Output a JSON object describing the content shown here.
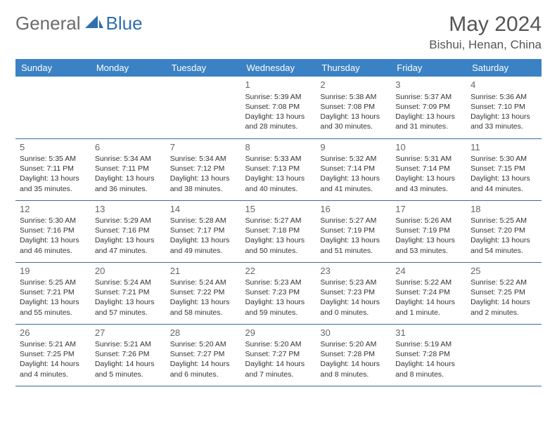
{
  "brand": {
    "part1": "General",
    "part2": "Blue"
  },
  "title": "May 2024",
  "location": "Bishui, Henan, China",
  "colors": {
    "header_bg": "#3b82c4",
    "header_fg": "#ffffff",
    "row_border": "#3b6a9a",
    "text": "#333333",
    "muted": "#666666",
    "brand_gray": "#6b6b6b",
    "brand_blue": "#2f6fb0"
  },
  "weekdays": [
    "Sunday",
    "Monday",
    "Tuesday",
    "Wednesday",
    "Thursday",
    "Friday",
    "Saturday"
  ],
  "weeks": [
    [
      null,
      null,
      null,
      {
        "d": "1",
        "sr": "5:39 AM",
        "ss": "7:08 PM",
        "dl": "13 hours and 28 minutes."
      },
      {
        "d": "2",
        "sr": "5:38 AM",
        "ss": "7:08 PM",
        "dl": "13 hours and 30 minutes."
      },
      {
        "d": "3",
        "sr": "5:37 AM",
        "ss": "7:09 PM",
        "dl": "13 hours and 31 minutes."
      },
      {
        "d": "4",
        "sr": "5:36 AM",
        "ss": "7:10 PM",
        "dl": "13 hours and 33 minutes."
      }
    ],
    [
      {
        "d": "5",
        "sr": "5:35 AM",
        "ss": "7:11 PM",
        "dl": "13 hours and 35 minutes."
      },
      {
        "d": "6",
        "sr": "5:34 AM",
        "ss": "7:11 PM",
        "dl": "13 hours and 36 minutes."
      },
      {
        "d": "7",
        "sr": "5:34 AM",
        "ss": "7:12 PM",
        "dl": "13 hours and 38 minutes."
      },
      {
        "d": "8",
        "sr": "5:33 AM",
        "ss": "7:13 PM",
        "dl": "13 hours and 40 minutes."
      },
      {
        "d": "9",
        "sr": "5:32 AM",
        "ss": "7:14 PM",
        "dl": "13 hours and 41 minutes."
      },
      {
        "d": "10",
        "sr": "5:31 AM",
        "ss": "7:14 PM",
        "dl": "13 hours and 43 minutes."
      },
      {
        "d": "11",
        "sr": "5:30 AM",
        "ss": "7:15 PM",
        "dl": "13 hours and 44 minutes."
      }
    ],
    [
      {
        "d": "12",
        "sr": "5:30 AM",
        "ss": "7:16 PM",
        "dl": "13 hours and 46 minutes."
      },
      {
        "d": "13",
        "sr": "5:29 AM",
        "ss": "7:16 PM",
        "dl": "13 hours and 47 minutes."
      },
      {
        "d": "14",
        "sr": "5:28 AM",
        "ss": "7:17 PM",
        "dl": "13 hours and 49 minutes."
      },
      {
        "d": "15",
        "sr": "5:27 AM",
        "ss": "7:18 PM",
        "dl": "13 hours and 50 minutes."
      },
      {
        "d": "16",
        "sr": "5:27 AM",
        "ss": "7:19 PM",
        "dl": "13 hours and 51 minutes."
      },
      {
        "d": "17",
        "sr": "5:26 AM",
        "ss": "7:19 PM",
        "dl": "13 hours and 53 minutes."
      },
      {
        "d": "18",
        "sr": "5:25 AM",
        "ss": "7:20 PM",
        "dl": "13 hours and 54 minutes."
      }
    ],
    [
      {
        "d": "19",
        "sr": "5:25 AM",
        "ss": "7:21 PM",
        "dl": "13 hours and 55 minutes."
      },
      {
        "d": "20",
        "sr": "5:24 AM",
        "ss": "7:21 PM",
        "dl": "13 hours and 57 minutes."
      },
      {
        "d": "21",
        "sr": "5:24 AM",
        "ss": "7:22 PM",
        "dl": "13 hours and 58 minutes."
      },
      {
        "d": "22",
        "sr": "5:23 AM",
        "ss": "7:23 PM",
        "dl": "13 hours and 59 minutes."
      },
      {
        "d": "23",
        "sr": "5:23 AM",
        "ss": "7:23 PM",
        "dl": "14 hours and 0 minutes."
      },
      {
        "d": "24",
        "sr": "5:22 AM",
        "ss": "7:24 PM",
        "dl": "14 hours and 1 minute."
      },
      {
        "d": "25",
        "sr": "5:22 AM",
        "ss": "7:25 PM",
        "dl": "14 hours and 2 minutes."
      }
    ],
    [
      {
        "d": "26",
        "sr": "5:21 AM",
        "ss": "7:25 PM",
        "dl": "14 hours and 4 minutes."
      },
      {
        "d": "27",
        "sr": "5:21 AM",
        "ss": "7:26 PM",
        "dl": "14 hours and 5 minutes."
      },
      {
        "d": "28",
        "sr": "5:20 AM",
        "ss": "7:27 PM",
        "dl": "14 hours and 6 minutes."
      },
      {
        "d": "29",
        "sr": "5:20 AM",
        "ss": "7:27 PM",
        "dl": "14 hours and 7 minutes."
      },
      {
        "d": "30",
        "sr": "5:20 AM",
        "ss": "7:28 PM",
        "dl": "14 hours and 8 minutes."
      },
      {
        "d": "31",
        "sr": "5:19 AM",
        "ss": "7:28 PM",
        "dl": "14 hours and 8 minutes."
      },
      null
    ]
  ],
  "labels": {
    "sunrise": "Sunrise:",
    "sunset": "Sunset:",
    "daylight": "Daylight:"
  }
}
